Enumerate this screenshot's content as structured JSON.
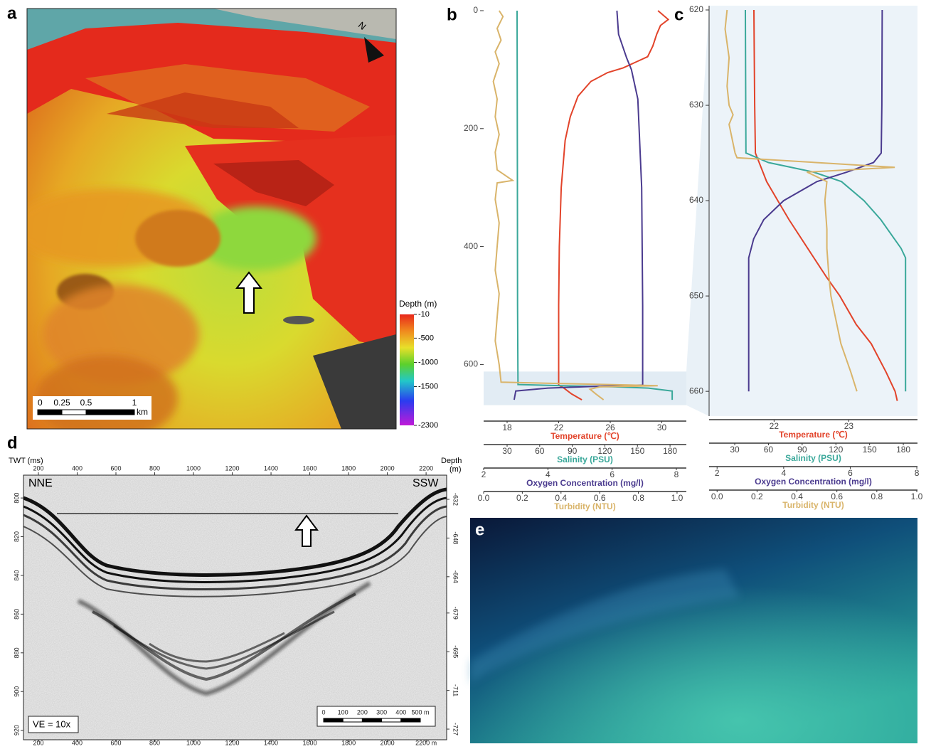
{
  "panel_a": {
    "label": "a",
    "north": "N",
    "colorbar": {
      "title": "Depth (m)",
      "lim": [
        -10,
        -2300
      ],
      "ticks": [
        -10,
        -500,
        -1000,
        -1500,
        -2300
      ]
    },
    "scale_bar": {
      "ticks": [
        0,
        0.25,
        0.5,
        1
      ],
      "unit": "km"
    }
  },
  "chart_data": [
    {
      "type": "profile",
      "label": "b",
      "ylim": [
        0,
        690
      ],
      "yticks": [
        0,
        200,
        400,
        600
      ],
      "zoom_box": [
        612,
        669
      ],
      "series": [
        {
          "name": "Temperature (℃)",
          "color": "#e2432a",
          "xlim": [
            16.18,
            31.9
          ],
          "xticks": [
            18,
            22,
            26,
            30
          ],
          "depth": [
            0,
            15,
            25,
            40,
            60,
            78,
            85,
            97,
            105,
            120,
            145,
            180,
            220,
            300,
            400,
            500,
            635,
            640,
            650,
            660
          ],
          "values": [
            29.7,
            30.5,
            29.9,
            29.6,
            29.3,
            28.9,
            28.2,
            27,
            25.8,
            24.5,
            23.5,
            22.9,
            22.5,
            22.2,
            22.05,
            22,
            22,
            22.4,
            23.0,
            23.8
          ]
        },
        {
          "name": "Salinity (PSU)",
          "color": "#3aa89a",
          "xlim": [
            8.4,
            195
          ],
          "xticks": [
            30,
            60,
            90,
            120,
            150,
            180
          ],
          "depth": [
            0,
            100,
            300,
            500,
            634,
            636,
            638,
            640,
            645,
            660
          ],
          "values": [
            39.2,
            39.3,
            39.5,
            39.6,
            40,
            80,
            130,
            160,
            182,
            182
          ]
        },
        {
          "name": "Oxygen  Concentration (mg/l)",
          "color": "#4b3b8f",
          "xlim": [
            2,
            8.31
          ],
          "xticks": [
            2,
            4,
            6,
            8
          ],
          "depth": [
            0,
            40,
            80,
            100,
            150,
            300,
            500,
            635,
            637,
            640,
            645,
            660
          ],
          "values": [
            6.15,
            6.2,
            6.45,
            6.6,
            6.8,
            6.92,
            6.95,
            6.95,
            5.5,
            4.0,
            3.0,
            2.95
          ]
        },
        {
          "name": "Turbidity (NTU)",
          "color": "#d9b46a",
          "xlim": [
            0,
            1.048
          ],
          "xticks": [
            {
              "value": 0,
              "label": "0.0"
            },
            0.2,
            0.4,
            0.6,
            0.8,
            {
              "value": 1,
              "label": "1.0"
            }
          ],
          "depth": [
            0,
            10,
            30,
            50,
            70,
            90,
            120,
            150,
            180,
            210,
            240,
            270,
            288,
            292,
            320,
            360,
            400,
            440,
            480,
            520,
            560,
            600,
            630,
            636,
            638,
            642,
            650,
            660
          ],
          "values": [
            0.08,
            0.1,
            0.07,
            0.09,
            0.06,
            0.08,
            0.05,
            0.07,
            0.06,
            0.08,
            0.06,
            0.07,
            0.15,
            0.07,
            0.06,
            0.08,
            0.07,
            0.06,
            0.08,
            0.07,
            0.06,
            0.08,
            0.09,
            0.9,
            0.6,
            0.55,
            0.58,
            0.62
          ]
        }
      ]
    },
    {
      "type": "profile",
      "label": "c",
      "ylim": [
        620,
        662.6
      ],
      "yticks": [
        620,
        630,
        640,
        650,
        660
      ],
      "background": "#ecf3f9",
      "series": [
        {
          "name": "Temperature (℃)",
          "color": "#e2432a",
          "xlim": [
            21.13,
            23.92
          ],
          "xticks": [
            22,
            23
          ],
          "depth": [
            620,
            630,
            635,
            636,
            638,
            640,
            642,
            645,
            648,
            650,
            653,
            655,
            658,
            660,
            661
          ],
          "values": [
            21.73,
            21.74,
            21.75,
            21.8,
            21.9,
            22.05,
            22.2,
            22.45,
            22.7,
            22.88,
            23.1,
            23.3,
            23.5,
            23.62,
            23.65
          ]
        },
        {
          "name": "Salinity (PSU)",
          "color": "#3aa89a",
          "xlim": [
            7.2,
            192.6
          ],
          "xticks": [
            30,
            60,
            90,
            120,
            150,
            180
          ],
          "depth": [
            620,
            630,
            635,
            636,
            637,
            638,
            640,
            642,
            644,
            645,
            646,
            660
          ],
          "values": [
            39.5,
            39.8,
            40,
            60,
            100,
            125,
            145,
            160,
            172,
            178,
            182,
            182
          ]
        },
        {
          "name": "Oxygen  Concentration (mg/l)",
          "color": "#4b3b8f",
          "xlim": [
            1.76,
            8.02
          ],
          "xticks": [
            2,
            4,
            6,
            8
          ],
          "depth": [
            620,
            630,
            635,
            636,
            637,
            638,
            640,
            642,
            644,
            646,
            660
          ],
          "values": [
            6.96,
            6.95,
            6.93,
            6.7,
            5.9,
            5.0,
            4.0,
            3.4,
            3.1,
            2.95,
            2.95
          ]
        },
        {
          "name": "Turbidity (NTU)",
          "color": "#d9b46a",
          "xlim": [
            -0.04,
            1.0036
          ],
          "xticks": [
            {
              "value": 0,
              "label": "0.0"
            },
            0.2,
            0.4,
            0.6,
            0.8,
            {
              "value": 1,
              "label": "1.0"
            }
          ],
          "depth": [
            620,
            622,
            625,
            628,
            630,
            631,
            632,
            633,
            635,
            635.5,
            636.5,
            637,
            638,
            640,
            643,
            645,
            648,
            650,
            653,
            655,
            658,
            660
          ],
          "values": [
            0.05,
            0.04,
            0.06,
            0.05,
            0.06,
            0.08,
            0.06,
            0.07,
            0.09,
            0.1,
            0.89,
            0.45,
            0.55,
            0.54,
            0.55,
            0.55,
            0.56,
            0.57,
            0.6,
            0.62,
            0.67,
            0.7
          ]
        }
      ]
    }
  ],
  "panel_d": {
    "label": "d",
    "left_title": "TWT (ms)",
    "right_title": [
      "Depth",
      "(m)"
    ],
    "left_edge": "NNE",
    "right_edge": "SSW",
    "ve": "VE = 10x",
    "xlim": [
      123,
      2306
    ],
    "top_ticks": [
      200,
      400,
      600,
      800,
      1000,
      1200,
      1400,
      1600,
      1800,
      2000,
      2200
    ],
    "bottom_ticks": [
      200,
      400,
      600,
      800,
      1000,
      1200,
      1400,
      1600,
      1800,
      2000,
      {
        "value": 2200,
        "label": "2200 m"
      }
    ],
    "left_lim": [
      788.2,
      924.9
    ],
    "left_ticks": [
      800,
      820,
      840,
      860,
      880,
      900,
      920
    ],
    "right_lim": [
      -622,
      -731.4
    ],
    "right_ticks": [
      -632,
      -648,
      -664,
      -679,
      -695,
      -711,
      -727
    ],
    "scale_bar": [
      0,
      100,
      200,
      300,
      400,
      {
        "value": 500,
        "label": "500 m"
      }
    ]
  },
  "panel_e": {
    "label": "e"
  }
}
